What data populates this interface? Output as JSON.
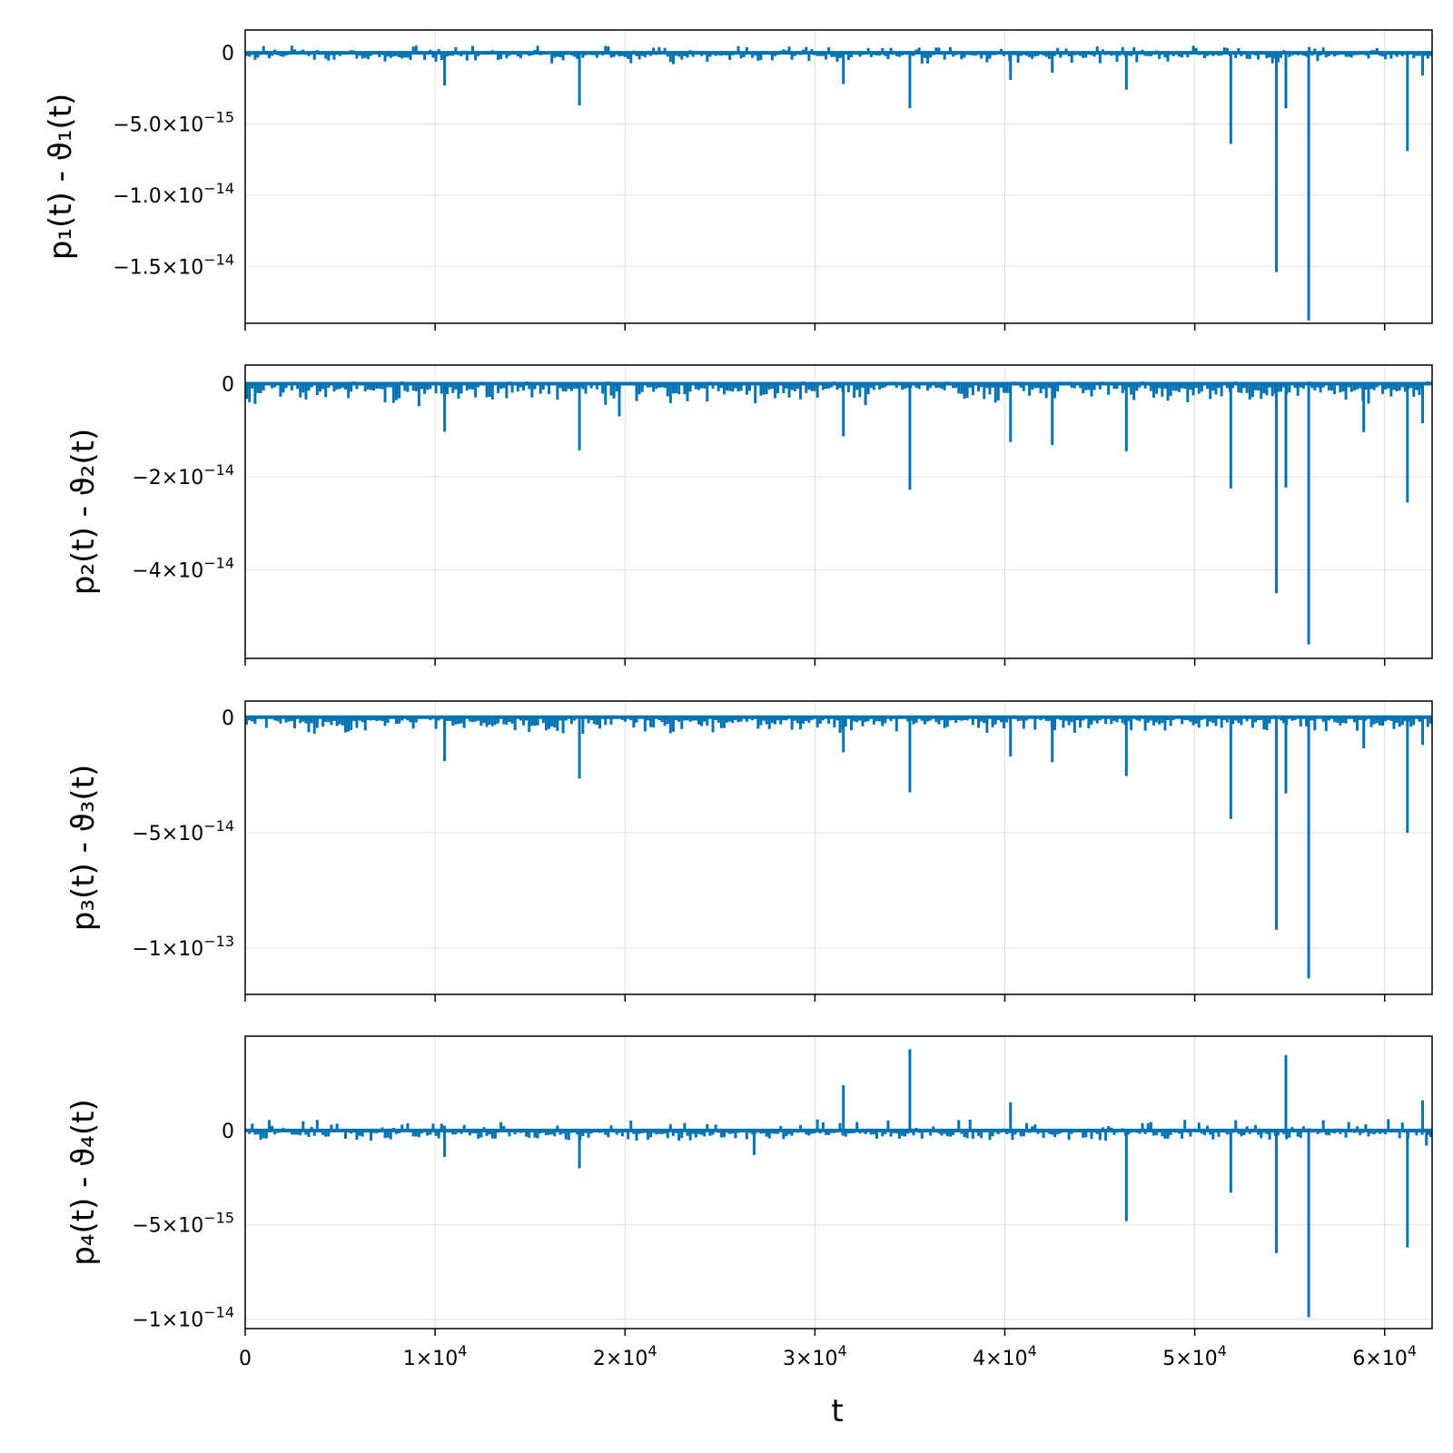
{
  "chart_data": {
    "type": "bar",
    "layout": "4 stacked panels sharing x axis",
    "series_color": "#0072B2",
    "grid": true,
    "xlabel": "t",
    "xlim": [
      0,
      62500
    ],
    "x_ticks": [
      {
        "value": 0,
        "label": "0"
      },
      {
        "value": 10000,
        "label": "1×10",
        "exp": "4"
      },
      {
        "value": 20000,
        "label": "2×10",
        "exp": "4"
      },
      {
        "value": 30000,
        "label": "3×10",
        "exp": "4"
      },
      {
        "value": 40000,
        "label": "4×10",
        "exp": "4"
      },
      {
        "value": 50000,
        "label": "5×10",
        "exp": "4"
      },
      {
        "value": 60000,
        "label": "6×10",
        "exp": "4"
      }
    ],
    "panels": [
      {
        "ylabel": "p₁(t) - ϑ₁(t)",
        "ylim": [
          -1.9e-14,
          1.6e-15
        ],
        "y_ticks": [
          {
            "value": 0,
            "label": "0"
          },
          {
            "value": -5e-15,
            "label": "−5.0×10",
            "exp": "−15"
          },
          {
            "value": -1e-14,
            "label": "−1.0×10",
            "exp": "−14"
          },
          {
            "value": -1.5e-14,
            "label": "−1.5×10",
            "exp": "−14"
          }
        ],
        "noise": {
          "low": -8e-16,
          "high": 5e-16
        },
        "spikes": [
          [
            10500,
            -2.3e-15
          ],
          [
            17600,
            -3.7e-15
          ],
          [
            31500,
            -2.2e-15
          ],
          [
            35000,
            -3.9e-15
          ],
          [
            40300,
            -1.9e-15
          ],
          [
            42500,
            -1.4e-15
          ],
          [
            46400,
            -2.6e-15
          ],
          [
            51900,
            -6.4e-15
          ],
          [
            54300,
            -1.54e-14
          ],
          [
            54800,
            -3.9e-15
          ],
          [
            56000,
            -1.88e-14
          ],
          [
            61200,
            -6.9e-15
          ],
          [
            62000,
            -1.6e-15
          ]
        ]
      },
      {
        "ylabel": "p₂(t) - ϑ₂(t)",
        "ylim": [
          -5.9e-14,
          4e-15
        ],
        "y_ticks": [
          {
            "value": 0,
            "label": "0"
          },
          {
            "value": -2e-14,
            "label": "−2×10",
            "exp": "−14"
          },
          {
            "value": -4e-14,
            "label": "−4×10",
            "exp": "−14"
          }
        ],
        "noise": {
          "low": -5e-15,
          "high": 5e-16
        },
        "spikes": [
          [
            10500,
            -1.03e-14
          ],
          [
            17600,
            -1.43e-14
          ],
          [
            19700,
            -7e-15
          ],
          [
            31500,
            -1.13e-14
          ],
          [
            35000,
            -2.28e-14
          ],
          [
            40300,
            -1.25e-14
          ],
          [
            42500,
            -1.32e-14
          ],
          [
            46400,
            -1.45e-14
          ],
          [
            51900,
            -2.25e-14
          ],
          [
            54300,
            -4.5e-14
          ],
          [
            54800,
            -2.23e-14
          ],
          [
            56000,
            -5.6e-14
          ],
          [
            58900,
            -1.04e-14
          ],
          [
            61200,
            -2.55e-14
          ],
          [
            62000,
            -8.5e-15
          ]
        ]
      },
      {
        "ylabel": "p₃(t) - ϑ₃(t)",
        "ylim": [
          -1.2e-13,
          7e-15
        ],
        "y_ticks": [
          {
            "value": 0,
            "label": "0"
          },
          {
            "value": -5e-14,
            "label": "−5×10",
            "exp": "−14"
          },
          {
            "value": -1e-13,
            "label": "−1×10",
            "exp": "−13"
          }
        ],
        "noise": {
          "low": -8e-15,
          "high": 5e-16
        },
        "spikes": [
          [
            10500,
            -1.9e-14
          ],
          [
            17600,
            -2.65e-14
          ],
          [
            31500,
            -1.52e-14
          ],
          [
            35000,
            -3.25e-14
          ],
          [
            40300,
            -1.7e-14
          ],
          [
            42500,
            -1.95e-14
          ],
          [
            46400,
            -2.55e-14
          ],
          [
            51900,
            -4.4e-14
          ],
          [
            54300,
            -9.2e-14
          ],
          [
            54800,
            -3.3e-14
          ],
          [
            56000,
            -1.13e-13
          ],
          [
            58900,
            -1.35e-14
          ],
          [
            61200,
            -5e-14
          ],
          [
            62000,
            -1.2e-14
          ]
        ]
      },
      {
        "ylabel": "p₄(t) - ϑ₄(t)",
        "ylim": [
          -1.05e-14,
          5e-15
        ],
        "y_ticks": [
          {
            "value": 0,
            "label": "0"
          },
          {
            "value": -5e-15,
            "label": "−5×10",
            "exp": "−15"
          },
          {
            "value": -1e-14,
            "label": "−1×10",
            "exp": "−14"
          }
        ],
        "noise": {
          "low": -6e-16,
          "high": 6e-16
        },
        "spikes": [
          [
            10500,
            -1.4e-15
          ],
          [
            17600,
            -2e-15
          ],
          [
            26800,
            -1.3e-15
          ],
          [
            31500,
            2.4e-15
          ],
          [
            35000,
            4.3e-15
          ],
          [
            40300,
            1.5e-15
          ],
          [
            46400,
            -4.8e-15
          ],
          [
            51900,
            -3.3e-15
          ],
          [
            54300,
            -6.5e-15
          ],
          [
            54800,
            4e-15
          ],
          [
            56000,
            -9.9e-15
          ],
          [
            61200,
            -6.2e-15
          ],
          [
            62000,
            1.6e-15
          ],
          [
            62200,
            -8e-16
          ]
        ]
      }
    ]
  }
}
